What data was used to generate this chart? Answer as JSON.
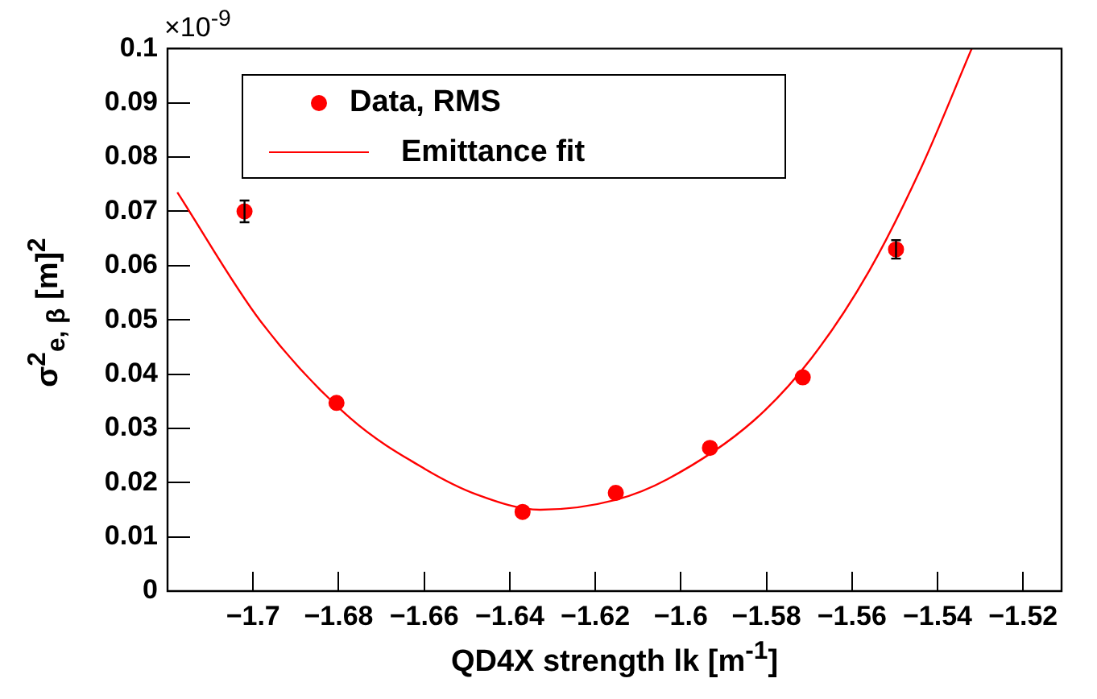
{
  "chart_data": {
    "type": "scatter",
    "xlabel": "QD4X strength lk [m$^{-1}$]",
    "ylabel": "σ$^{2}$$_{e, β}$ [m]$^{2}$",
    "annotations": [
      "×10$^{-9}$"
    ],
    "xlim": [
      -1.72,
      -1.511
    ],
    "xticks": [
      -1.7,
      -1.68,
      -1.66,
      -1.64,
      -1.62,
      -1.6,
      -1.58,
      -1.56,
      -1.54,
      -1.52
    ],
    "ylim": [
      0,
      0.1
    ],
    "yticks": [
      0,
      0.01,
      0.02,
      0.03,
      0.04,
      0.05,
      0.06,
      0.07,
      0.08,
      0.09,
      0.1
    ],
    "grid": false,
    "legend": "top left",
    "marker": "circle",
    "series": [
      {
        "name": "Data, RMS",
        "type": "scatter",
        "color": "#ff0000",
        "x": [
          -1.702,
          -1.6805,
          -1.637,
          -1.6152,
          -1.5932,
          -1.5715,
          -1.5497
        ],
        "values": [
          0.07,
          0.0347,
          0.0146,
          0.0181,
          0.0264,
          0.0394,
          0.063
        ],
        "errors": [
          0.002,
          null,
          null,
          null,
          null,
          null,
          0.0017
        ]
      },
      {
        "name": "Emittance fit",
        "type": "line",
        "color": "#ff0000",
        "marker": "none",
        "x": [
          -1.7177,
          -1.6982,
          -1.6773,
          -1.6598,
          -1.6477,
          -1.6329,
          -1.6153,
          -1.6032,
          -1.583,
          -1.5695,
          -1.556,
          -1.5439,
          -1.532
        ],
        "values": [
          0.0735,
          0.0497,
          0.0319,
          0.0225,
          0.0178,
          0.015,
          0.0168,
          0.0206,
          0.0314,
          0.0429,
          0.059,
          0.0779,
          0.1
        ]
      }
    ]
  }
}
